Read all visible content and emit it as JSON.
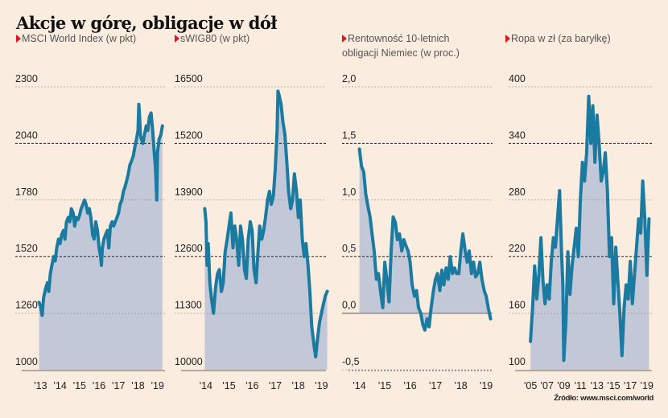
{
  "title": "Akcje w górę, obligacje w dół",
  "source": "Źródło: www.msci.com/world",
  "colors": {
    "background": "#fbece0",
    "line": "#1a7aa0",
    "area": "#c2c8d8",
    "marker": "#e3121b",
    "grid": "#999999",
    "grid_major": "#222222"
  },
  "chart_data": [
    {
      "type": "area",
      "title": "MSCI World Index (w pkt)",
      "ylim": [
        1000,
        2300
      ],
      "yticks": [
        "2300",
        "2040",
        "1780",
        "1520",
        "1260",
        "1000"
      ],
      "ytick_values": [
        2300,
        2040,
        1780,
        1520,
        1260,
        1000
      ],
      "major_gridlines": [
        2040,
        1520
      ],
      "xlim": [
        2012.9,
        2019.3
      ],
      "xticks": [
        "'13",
        "'14",
        "'15",
        "'16",
        "'17",
        "'18",
        "'19"
      ],
      "xtick_values": [
        2013,
        2014,
        2015,
        2016,
        2017,
        2018,
        2019
      ],
      "baseline": 1000,
      "x": [
        2012.92,
        2013.0,
        2013.08,
        2013.15,
        2013.25,
        2013.35,
        2013.42,
        2013.5,
        2013.58,
        2013.67,
        2013.75,
        2013.83,
        2013.92,
        2014.0,
        2014.08,
        2014.17,
        2014.25,
        2014.33,
        2014.42,
        2014.5,
        2014.58,
        2014.67,
        2014.75,
        2014.83,
        2014.92,
        2015.0,
        2015.08,
        2015.17,
        2015.25,
        2015.33,
        2015.42,
        2015.5,
        2015.58,
        2015.67,
        2015.75,
        2015.83,
        2015.92,
        2016.0,
        2016.08,
        2016.12,
        2016.17,
        2016.25,
        2016.33,
        2016.42,
        2016.5,
        2016.58,
        2016.67,
        2016.75,
        2016.83,
        2016.92,
        2017.0,
        2017.08,
        2017.17,
        2017.25,
        2017.33,
        2017.42,
        2017.5,
        2017.58,
        2017.67,
        2017.75,
        2017.83,
        2017.92,
        2018.0,
        2018.04,
        2018.08,
        2018.12,
        2018.17,
        2018.25,
        2018.33,
        2018.42,
        2018.5,
        2018.58,
        2018.67,
        2018.75,
        2018.83,
        2018.9,
        2018.96,
        2019.0,
        2019.08,
        2019.17,
        2019.25
      ],
      "values": [
        1310,
        1290,
        1250,
        1330,
        1370,
        1400,
        1360,
        1440,
        1480,
        1520,
        1500,
        1560,
        1600,
        1580,
        1620,
        1640,
        1600,
        1680,
        1700,
        1680,
        1740,
        1720,
        1660,
        1700,
        1690,
        1710,
        1740,
        1760,
        1780,
        1760,
        1720,
        1740,
        1700,
        1620,
        1600,
        1680,
        1640,
        1560,
        1520,
        1480,
        1560,
        1600,
        1620,
        1640,
        1560,
        1660,
        1680,
        1660,
        1680,
        1700,
        1720,
        1760,
        1780,
        1820,
        1840,
        1870,
        1900,
        1940,
        1960,
        1980,
        2020,
        2060,
        2100,
        2220,
        2160,
        2080,
        2060,
        2040,
        2080,
        2120,
        2100,
        2160,
        2180,
        2100,
        2000,
        1920,
        1780,
        2000,
        2060,
        2080,
        2120
      ]
    },
    {
      "type": "area",
      "title": "sWIG80 (w pkt)",
      "ylim": [
        10000,
        16500
      ],
      "yticks": [
        "16500",
        "15200",
        "13900",
        "12600",
        "11300",
        "10000"
      ],
      "ytick_values": [
        16500,
        15200,
        13900,
        12600,
        11300,
        10000
      ],
      "major_gridlines": [
        15200,
        12600
      ],
      "xlim": [
        2013.9,
        2019.3
      ],
      "xticks": [
        "'14",
        "'15",
        "'16",
        "'17",
        "'18",
        "'19"
      ],
      "xtick_values": [
        2014,
        2015,
        2016,
        2017,
        2018,
        2019
      ],
      "baseline": 10000,
      "x": [
        2013.95,
        2014.0,
        2014.05,
        2014.1,
        2014.17,
        2014.25,
        2014.33,
        2014.42,
        2014.5,
        2014.58,
        2014.67,
        2014.75,
        2014.83,
        2014.92,
        2015.0,
        2015.08,
        2015.17,
        2015.25,
        2015.33,
        2015.42,
        2015.5,
        2015.58,
        2015.67,
        2015.75,
        2015.83,
        2015.92,
        2016.0,
        2016.08,
        2016.17,
        2016.25,
        2016.33,
        2016.42,
        2016.5,
        2016.58,
        2016.67,
        2016.75,
        2016.83,
        2016.92,
        2017.0,
        2017.08,
        2017.12,
        2017.17,
        2017.25,
        2017.33,
        2017.42,
        2017.5,
        2017.58,
        2017.67,
        2017.75,
        2017.83,
        2017.92,
        2018.0,
        2018.08,
        2018.17,
        2018.25,
        2018.33,
        2018.42,
        2018.5,
        2018.58,
        2018.67,
        2018.75,
        2018.83,
        2018.92,
        2019.0,
        2019.08,
        2019.17,
        2019.25
      ],
      "values": [
        13700,
        13400,
        12400,
        12900,
        12000,
        11600,
        11300,
        11900,
        12200,
        12300,
        11800,
        12000,
        12700,
        13000,
        13300,
        13600,
        12800,
        13300,
        13000,
        12400,
        13300,
        13000,
        12300,
        12100,
        13000,
        13400,
        13200,
        12300,
        12000,
        12700,
        13300,
        13000,
        13200,
        13500,
        13900,
        14100,
        13800,
        14000,
        14600,
        15500,
        16400,
        16300,
        16100,
        15700,
        15400,
        14800,
        14100,
        13700,
        13900,
        14500,
        14100,
        13500,
        13900,
        13000,
        12600,
        12900,
        12400,
        11800,
        11000,
        10600,
        10300,
        10700,
        11100,
        11300,
        11500,
        11700,
        11800
      ]
    },
    {
      "type": "area",
      "title": "Rentowność 10-letnich obligacji Niemiec (w proc.)",
      "ylim": [
        -0.5,
        2.0
      ],
      "yticks": [
        "2,0",
        "1,5",
        "1,0",
        "0,5",
        "0,0",
        "-0,5"
      ],
      "ytick_values": [
        2.0,
        1.5,
        1.0,
        0.5,
        0.0,
        -0.5
      ],
      "major_gridlines": [
        1.5,
        0.5
      ],
      "xlim": [
        2013.95,
        2019.25
      ],
      "xticks": [
        "'14",
        "'15",
        "'16",
        "'17",
        "'18",
        "'19"
      ],
      "xtick_values": [
        2014,
        2015,
        2016,
        2017,
        2018,
        2019
      ],
      "baseline": 0.0,
      "x": [
        2014.0,
        2014.08,
        2014.17,
        2014.25,
        2014.33,
        2014.42,
        2014.5,
        2014.58,
        2014.67,
        2014.75,
        2014.83,
        2014.92,
        2015.0,
        2015.08,
        2015.17,
        2015.25,
        2015.33,
        2015.42,
        2015.5,
        2015.58,
        2015.67,
        2015.75,
        2015.83,
        2015.92,
        2016.0,
        2016.08,
        2016.17,
        2016.25,
        2016.33,
        2016.42,
        2016.5,
        2016.58,
        2016.67,
        2016.75,
        2016.83,
        2016.92,
        2017.0,
        2017.08,
        2017.17,
        2017.25,
        2017.33,
        2017.42,
        2017.5,
        2017.58,
        2017.67,
        2017.75,
        2017.83,
        2017.92,
        2018.0,
        2018.08,
        2018.17,
        2018.25,
        2018.33,
        2018.42,
        2018.5,
        2018.58,
        2018.67,
        2018.75,
        2018.83,
        2018.92,
        2019.0,
        2019.08,
        2019.17
      ],
      "values": [
        1.45,
        1.3,
        1.25,
        1.05,
        0.95,
        0.85,
        0.7,
        0.55,
        0.3,
        0.35,
        0.2,
        0.05,
        0.45,
        0.3,
        0.1,
        0.55,
        0.85,
        0.8,
        0.65,
        0.7,
        0.55,
        0.65,
        0.6,
        0.55,
        0.45,
        0.25,
        0.15,
        0.2,
        0.05,
        0.0,
        -0.1,
        -0.15,
        -0.05,
        -0.12,
        0.05,
        0.2,
        0.3,
        0.35,
        0.2,
        0.38,
        0.25,
        0.4,
        0.3,
        0.5,
        0.35,
        0.4,
        0.35,
        0.35,
        0.55,
        0.7,
        0.55,
        0.45,
        0.55,
        0.35,
        0.45,
        0.32,
        0.35,
        0.45,
        0.3,
        0.2,
        0.15,
        0.05,
        -0.05
      ]
    },
    {
      "type": "area",
      "title": "Ropa w zł (za baryłkę)",
      "ylim": [
        100,
        400
      ],
      "yticks": [
        "400",
        "340",
        "280",
        "220",
        "160",
        "100"
      ],
      "ytick_values": [
        400,
        340,
        280,
        220,
        160,
        100
      ],
      "major_gridlines": [
        340,
        220
      ],
      "xlim": [
        2004.6,
        2019.6
      ],
      "xticks": [
        "'05",
        "'07",
        "'09",
        "'11",
        "'13",
        "'15",
        "'17",
        "'19"
      ],
      "xtick_values": [
        2005,
        2007,
        2009,
        2011,
        2013,
        2015,
        2017,
        2019
      ],
      "baseline": 100,
      "x": [
        2005.0,
        2005.25,
        2005.5,
        2005.75,
        2006.0,
        2006.25,
        2006.5,
        2006.75,
        2007.0,
        2007.25,
        2007.5,
        2007.75,
        2008.0,
        2008.25,
        2008.5,
        2008.75,
        2008.9,
        2009.0,
        2009.25,
        2009.5,
        2009.75,
        2010.0,
        2010.25,
        2010.5,
        2010.75,
        2011.0,
        2011.25,
        2011.5,
        2011.75,
        2012.0,
        2012.25,
        2012.5,
        2012.75,
        2013.0,
        2013.25,
        2013.5,
        2013.75,
        2014.0,
        2014.25,
        2014.5,
        2014.75,
        2015.0,
        2015.25,
        2015.5,
        2015.75,
        2016.0,
        2016.25,
        2016.5,
        2016.75,
        2017.0,
        2017.25,
        2017.5,
        2017.75,
        2018.0,
        2018.25,
        2018.5,
        2018.75,
        2019.0,
        2019.25
      ],
      "values": [
        130,
        165,
        210,
        175,
        200,
        240,
        195,
        170,
        190,
        175,
        215,
        240,
        230,
        260,
        290,
        220,
        190,
        110,
        150,
        225,
        180,
        210,
        230,
        250,
        220,
        280,
        320,
        300,
        330,
        390,
        340,
        380,
        320,
        370,
        340,
        300,
        310,
        330,
        290,
        220,
        240,
        170,
        230,
        195,
        160,
        115,
        165,
        190,
        175,
        215,
        170,
        200,
        230,
        260,
        245,
        300,
        260,
        200,
        260
      ]
    }
  ]
}
